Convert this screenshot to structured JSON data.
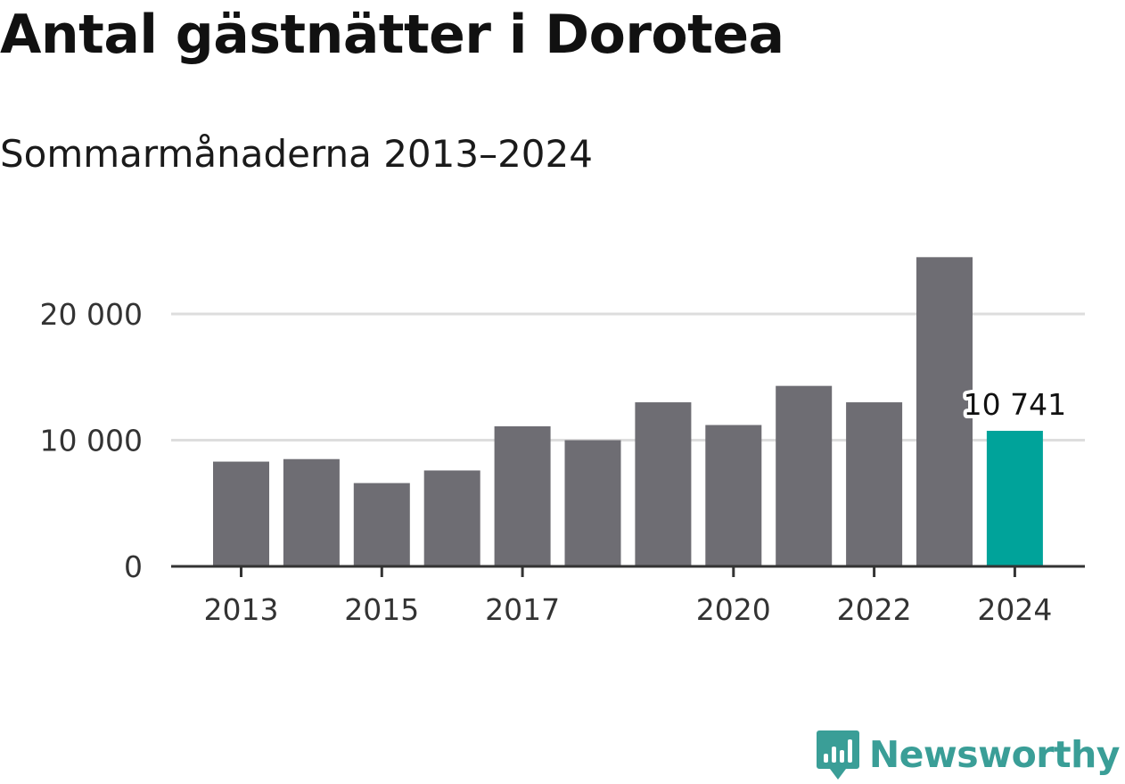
{
  "header": {
    "title": "Antal gästnätter i Dorotea",
    "subtitle": "Sommarmånaderna 2013–2024"
  },
  "brand": {
    "name": "Newsworthy",
    "color": "#3a9e97"
  },
  "colors": {
    "bar": "#6e6d73",
    "highlight": "#00a39a",
    "grid": "#dddddd",
    "axis": "#333333"
  },
  "chart_data": {
    "type": "bar",
    "title": "Antal gästnätter i Dorotea",
    "subtitle": "Sommarmånaderna 2013–2024",
    "xlabel": "",
    "ylabel": "",
    "categories": [
      "2013",
      "2014",
      "2015",
      "2016",
      "2017",
      "2018",
      "2019",
      "2020",
      "2021",
      "2022",
      "2023",
      "2024"
    ],
    "values": [
      8300,
      8500,
      6600,
      7600,
      11100,
      10000,
      13000,
      11200,
      14300,
      13000,
      24500,
      10741
    ],
    "highlight_index": 11,
    "data_labels": [
      {
        "index": 11,
        "text": "10 741"
      }
    ],
    "x_tick_labels": [
      {
        "index": 0,
        "text": "2013"
      },
      {
        "index": 2,
        "text": "2015"
      },
      {
        "index": 4,
        "text": "2017"
      },
      {
        "index": 7,
        "text": "2020"
      },
      {
        "index": 9,
        "text": "2022"
      },
      {
        "index": 11,
        "text": "2024"
      }
    ],
    "y_ticks": [
      {
        "value": 0,
        "text": "0"
      },
      {
        "value": 10000,
        "text": "10 000"
      },
      {
        "value": 20000,
        "text": "20 000"
      }
    ],
    "ylim": [
      0,
      24500
    ],
    "grid": true
  }
}
